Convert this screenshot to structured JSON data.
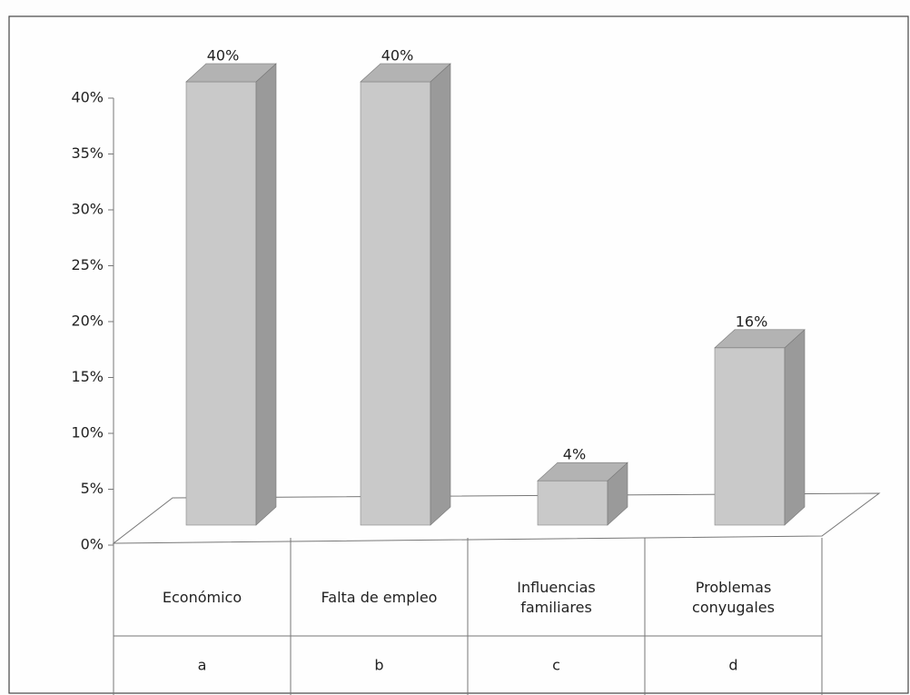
{
  "chart_data": {
    "type": "bar3d",
    "categories": [
      "Económico",
      "Falta de empleo",
      "Influencias familiares",
      "Problemas conyugales"
    ],
    "category_codes": [
      "a",
      "b",
      "c",
      "d"
    ],
    "values": [
      40,
      40,
      4,
      16
    ],
    "value_labels": [
      "40%",
      "40%",
      "4%",
      "16%"
    ],
    "color": "#c9c9c9",
    "ylim": [
      0,
      40
    ],
    "yticks": [
      {
        "value": 0,
        "label": "0%"
      },
      {
        "value": 5,
        "label": "5%"
      },
      {
        "value": 10,
        "label": "10%"
      },
      {
        "value": 15,
        "label": "15%"
      },
      {
        "value": 20,
        "label": "20%"
      },
      {
        "value": 25,
        "label": "25%"
      },
      {
        "value": 30,
        "label": "30%"
      },
      {
        "value": 35,
        "label": "35%"
      },
      {
        "value": 40,
        "label": "40%"
      }
    ]
  }
}
